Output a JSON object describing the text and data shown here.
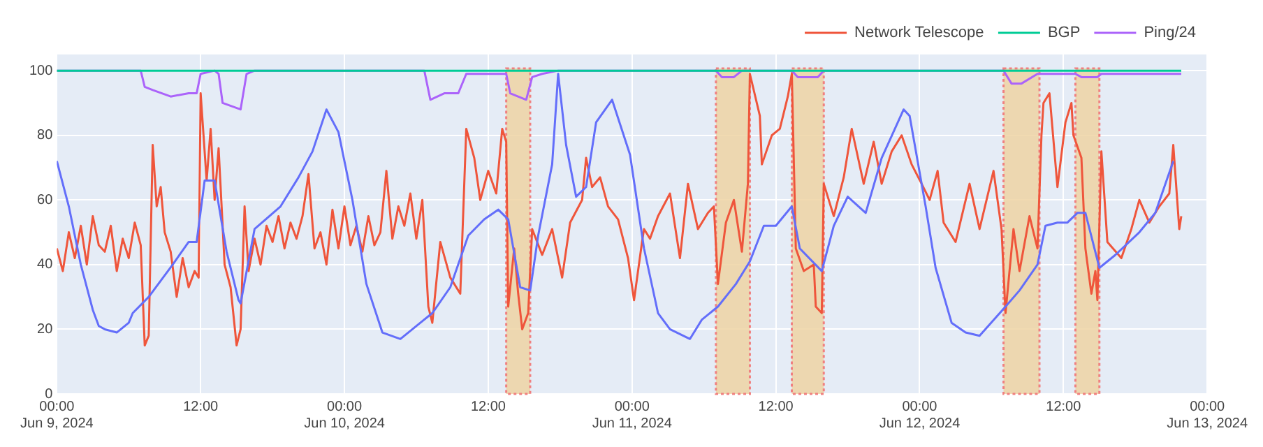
{
  "chart_data": {
    "type": "line",
    "xlim": [
      "2024-06-09T00:00",
      "2024-06-13T00:00"
    ],
    "xticks": [
      {
        "value": "2024-06-09T00:00",
        "label": "00:00\nJun 9, 2024"
      },
      {
        "value": "2024-06-09T12:00",
        "label": "12:00"
      },
      {
        "value": "2024-06-10T00:00",
        "label": "00:00\nJun 10, 2024"
      },
      {
        "value": "2024-06-10T12:00",
        "label": "12:00"
      },
      {
        "value": "2024-06-11T00:00",
        "label": "00:00\nJun 11, 2024"
      },
      {
        "value": "2024-06-11T12:00",
        "label": "12:00"
      },
      {
        "value": "2024-06-12T00:00",
        "label": "00:00\nJun 12, 2024"
      },
      {
        "value": "2024-06-12T12:00",
        "label": "12:00"
      },
      {
        "value": "2024-06-13T00:00",
        "label": "00:00\nJun 13, 2024"
      }
    ],
    "ylim": [
      0,
      105
    ],
    "yticks": [
      0,
      20,
      40,
      60,
      80,
      100
    ],
    "grid": true,
    "legend": "top right",
    "marker": "none",
    "line_style": "solid",
    "bands": [
      {
        "axis": "x",
        "from": "2024-06-10T13:30",
        "to": "2024-06-10T15:30",
        "color": "#efd3a3"
      },
      {
        "axis": "x",
        "from": "2024-06-11T07:00",
        "to": "2024-06-11T09:50",
        "color": "#efd3a3"
      },
      {
        "axis": "x",
        "from": "2024-06-11T13:20",
        "to": "2024-06-11T16:00",
        "color": "#efd3a3"
      },
      {
        "axis": "x",
        "from": "2024-06-12T07:00",
        "to": "2024-06-12T10:00",
        "color": "#efd3a3"
      },
      {
        "axis": "x",
        "from": "2024-06-12T13:00",
        "to": "2024-06-12T15:00",
        "color": "#efd3a3"
      }
    ],
    "series": [
      {
        "color": "#636efa",
        "x": [
          "2024-06-09T00:00",
          "2024-06-09T01:00",
          "2024-06-09T02:00",
          "2024-06-09T03:00",
          "2024-06-09T03:30",
          "2024-06-09T04:00",
          "2024-06-09T05:00",
          "2024-06-09T06:00",
          "2024-06-09T06:20",
          "2024-06-09T07:40",
          "2024-06-09T09:40",
          "2024-06-09T11:00",
          "2024-06-09T11:40",
          "2024-06-09T12:20",
          "2024-06-09T13:10",
          "2024-06-09T14:10",
          "2024-06-09T15:10",
          "2024-06-09T15:20",
          "2024-06-09T16:30",
          "2024-06-09T18:40",
          "2024-06-09T20:10",
          "2024-06-09T21:20",
          "2024-06-09T22:30",
          "2024-06-09T23:30",
          "2024-06-10T00:40",
          "2024-06-10T01:50",
          "2024-06-10T03:10",
          "2024-06-10T04:40",
          "2024-06-10T06:20",
          "2024-06-10T07:20",
          "2024-06-10T08:50",
          "2024-06-10T10:20",
          "2024-06-10T11:40",
          "2024-06-10T12:50",
          "2024-06-10T13:40",
          "2024-06-10T14:40",
          "2024-06-10T15:30",
          "2024-06-10T16:10",
          "2024-06-10T17:20",
          "2024-06-10T17:50",
          "2024-06-10T18:30",
          "2024-06-10T19:20",
          "2024-06-10T20:10",
          "2024-06-10T21:00",
          "2024-06-10T22:20",
          "2024-06-10T23:50",
          "2024-06-11T01:00",
          "2024-06-11T02:10",
          "2024-06-11T03:10",
          "2024-06-11T04:50",
          "2024-06-11T05:50",
          "2024-06-11T07:10",
          "2024-06-11T08:40",
          "2024-06-11T09:50",
          "2024-06-11T11:00",
          "2024-06-11T12:00",
          "2024-06-11T13:20",
          "2024-06-11T14:00",
          "2024-06-11T15:50",
          "2024-06-11T16:50",
          "2024-06-11T18:00",
          "2024-06-11T19:30",
          "2024-06-11T20:50",
          "2024-06-11T22:40",
          "2024-06-11T23:10",
          "2024-06-12T00:30",
          "2024-06-12T01:20",
          "2024-06-12T02:40",
          "2024-06-12T03:50",
          "2024-06-12T05:00",
          "2024-06-12T07:10",
          "2024-06-12T08:20",
          "2024-06-12T09:50",
          "2024-06-12T10:30",
          "2024-06-12T11:30",
          "2024-06-12T12:20",
          "2024-06-12T13:10",
          "2024-06-12T13:50",
          "2024-06-12T15:00",
          "2024-06-12T16:20",
          "2024-06-12T18:20",
          "2024-06-12T19:40",
          "2024-06-12T21:10"
        ],
        "values": [
          72,
          58,
          40,
          26,
          21,
          20,
          19,
          22,
          25,
          30,
          40,
          47,
          47,
          66,
          66,
          44,
          29,
          28,
          51,
          58,
          67,
          75,
          88,
          81,
          60,
          34,
          19,
          17,
          22,
          25,
          33,
          49,
          54,
          57,
          54,
          33,
          32,
          49,
          71,
          99,
          77,
          61,
          64,
          84,
          91,
          74,
          45,
          25,
          20,
          17,
          23,
          27,
          34,
          41,
          52,
          52,
          58,
          45,
          38,
          52,
          61,
          56,
          73,
          88,
          86,
          58,
          39,
          22,
          19,
          18,
          27,
          32,
          40,
          52,
          53,
          53,
          56,
          56,
          39,
          43,
          50,
          56,
          72
        ]
      },
      {
        "name": "Network Telescope",
        "color": "#ef553b",
        "x": [
          "2024-06-09T00:00",
          "2024-06-09T00:30",
          "2024-06-09T01:00",
          "2024-06-09T01:30",
          "2024-06-09T02:00",
          "2024-06-09T02:30",
          "2024-06-09T03:00",
          "2024-06-09T03:30",
          "2024-06-09T04:00",
          "2024-06-09T04:30",
          "2024-06-09T05:00",
          "2024-06-09T05:30",
          "2024-06-09T06:00",
          "2024-06-09T06:30",
          "2024-06-09T07:00",
          "2024-06-09T07:20",
          "2024-06-09T07:40",
          "2024-06-09T08:00",
          "2024-06-09T08:20",
          "2024-06-09T08:40",
          "2024-06-09T09:00",
          "2024-06-09T09:30",
          "2024-06-09T10:00",
          "2024-06-09T10:30",
          "2024-06-09T11:00",
          "2024-06-09T11:30",
          "2024-06-09T11:50",
          "2024-06-09T12:00",
          "2024-06-09T12:30",
          "2024-06-09T12:50",
          "2024-06-09T13:10",
          "2024-06-09T13:30",
          "2024-06-09T14:00",
          "2024-06-09T14:30",
          "2024-06-09T15:00",
          "2024-06-09T15:20",
          "2024-06-09T15:40",
          "2024-06-09T16:00",
          "2024-06-09T16:30",
          "2024-06-09T17:00",
          "2024-06-09T17:30",
          "2024-06-09T18:00",
          "2024-06-09T18:30",
          "2024-06-09T19:00",
          "2024-06-09T19:30",
          "2024-06-09T20:00",
          "2024-06-09T20:30",
          "2024-06-09T21:00",
          "2024-06-09T21:30",
          "2024-06-09T22:00",
          "2024-06-09T22:30",
          "2024-06-09T23:00",
          "2024-06-09T23:30",
          "2024-06-10T00:00",
          "2024-06-10T00:30",
          "2024-06-10T01:00",
          "2024-06-10T01:30",
          "2024-06-10T02:00",
          "2024-06-10T02:30",
          "2024-06-10T03:00",
          "2024-06-10T03:30",
          "2024-06-10T04:00",
          "2024-06-10T04:30",
          "2024-06-10T05:00",
          "2024-06-10T05:30",
          "2024-06-10T06:00",
          "2024-06-10T06:30",
          "2024-06-10T07:00",
          "2024-06-10T07:20",
          "2024-06-10T08:00",
          "2024-06-10T08:50",
          "2024-06-10T09:40",
          "2024-06-10T10:10",
          "2024-06-10T10:50",
          "2024-06-10T11:20",
          "2024-06-10T12:00",
          "2024-06-10T12:40",
          "2024-06-10T13:10",
          "2024-06-10T13:30",
          "2024-06-10T13:40",
          "2024-06-10T14:10",
          "2024-06-10T14:30",
          "2024-06-10T14:50",
          "2024-06-10T15:20",
          "2024-06-10T15:40",
          "2024-06-10T16:30",
          "2024-06-10T17:20",
          "2024-06-10T18:10",
          "2024-06-10T18:50",
          "2024-06-10T19:50",
          "2024-06-10T20:10",
          "2024-06-10T20:40",
          "2024-06-10T21:20",
          "2024-06-10T22:00",
          "2024-06-10T22:50",
          "2024-06-10T23:40",
          "2024-06-11T00:10",
          "2024-06-11T00:50",
          "2024-06-11T01:00",
          "2024-06-11T01:30",
          "2024-06-11T02:10",
          "2024-06-11T03:10",
          "2024-06-11T04:00",
          "2024-06-11T04:40",
          "2024-06-11T05:30",
          "2024-06-11T06:20",
          "2024-06-11T06:50",
          "2024-06-11T07:10",
          "2024-06-11T07:50",
          "2024-06-11T08:30",
          "2024-06-11T09:10",
          "2024-06-11T09:40",
          "2024-06-11T09:50",
          "2024-06-11T10:40",
          "2024-06-11T10:50",
          "2024-06-11T11:40",
          "2024-06-11T12:20",
          "2024-06-11T13:00",
          "2024-06-11T13:20",
          "2024-06-11T13:40",
          "2024-06-11T14:20",
          "2024-06-11T15:10",
          "2024-06-11T15:20",
          "2024-06-11T15:50",
          "2024-06-11T16:00",
          "2024-06-11T16:50",
          "2024-06-11T17:40",
          "2024-06-11T18:20",
          "2024-06-11T19:20",
          "2024-06-11T20:10",
          "2024-06-11T20:50",
          "2024-06-11T21:40",
          "2024-06-11T22:30",
          "2024-06-11T23:20",
          "2024-06-12T00:10",
          "2024-06-12T00:50",
          "2024-06-12T01:30",
          "2024-06-12T02:00",
          "2024-06-12T03:00",
          "2024-06-12T04:10",
          "2024-06-12T05:00",
          "2024-06-12T06:10",
          "2024-06-12T06:50",
          "2024-06-12T07:10",
          "2024-06-12T07:50",
          "2024-06-12T08:20",
          "2024-06-12T09:10",
          "2024-06-12T09:50",
          "2024-06-12T10:10",
          "2024-06-12T10:20",
          "2024-06-12T10:50",
          "2024-06-12T11:30",
          "2024-06-12T12:10",
          "2024-06-12T12:40",
          "2024-06-12T12:50",
          "2024-06-12T13:30",
          "2024-06-12T13:50",
          "2024-06-12T14:20",
          "2024-06-12T14:40",
          "2024-06-12T14:50",
          "2024-06-12T15:10",
          "2024-06-12T15:40",
          "2024-06-12T16:50",
          "2024-06-12T17:40",
          "2024-06-12T18:20",
          "2024-06-12T19:10",
          "2024-06-12T20:00",
          "2024-06-12T20:50",
          "2024-06-12T21:10",
          "2024-06-12T21:40",
          "2024-06-12T21:50"
        ],
        "values": [
          45,
          38,
          50,
          42,
          52,
          40,
          55,
          46,
          44,
          52,
          38,
          48,
          42,
          53,
          46,
          15,
          18,
          77,
          58,
          64,
          50,
          44,
          30,
          42,
          33,
          38,
          36,
          93,
          66,
          82,
          60,
          76,
          40,
          33,
          15,
          20,
          58,
          38,
          48,
          40,
          52,
          47,
          55,
          45,
          53,
          48,
          55,
          68,
          45,
          50,
          40,
          57,
          45,
          58,
          46,
          52,
          44,
          55,
          46,
          50,
          69,
          48,
          58,
          52,
          62,
          48,
          60,
          27,
          22,
          47,
          36,
          31,
          82,
          73,
          60,
          69,
          62,
          82,
          78,
          27,
          45,
          31,
          20,
          25,
          51,
          43,
          51,
          36,
          53,
          60,
          73,
          64,
          67,
          58,
          54,
          42,
          29,
          47,
          51,
          48,
          55,
          62,
          42,
          65,
          51,
          56,
          58,
          34,
          53,
          60,
          44,
          65,
          99,
          86,
          71,
          80,
          82,
          92,
          99,
          45,
          38,
          40,
          27,
          25,
          65,
          55,
          67,
          82,
          65,
          78,
          65,
          75,
          80,
          71,
          65,
          60,
          69,
          53,
          47,
          65,
          51,
          69,
          51,
          25,
          51,
          38,
          55,
          45,
          80,
          90,
          93,
          64,
          84,
          90,
          80,
          73,
          45,
          31,
          38,
          29,
          75,
          47,
          42,
          51,
          60,
          53,
          58,
          62,
          77,
          51,
          55
        ]
      },
      {
        "name": "BGP",
        "color": "#00cc96",
        "x": [
          "2024-06-09T00:00",
          "2024-06-12T21:50"
        ],
        "values": [
          100,
          100
        ]
      },
      {
        "name": "Ping/24",
        "color": "#ab63fa",
        "x": [
          "2024-06-09T00:00",
          "2024-06-09T07:00",
          "2024-06-09T07:20",
          "2024-06-09T08:00",
          "2024-06-09T09:30",
          "2024-06-09T11:00",
          "2024-06-09T11:40",
          "2024-06-09T12:00",
          "2024-06-09T13:10",
          "2024-06-09T13:30",
          "2024-06-09T13:50",
          "2024-06-09T15:20",
          "2024-06-09T15:50",
          "2024-06-09T16:30",
          "2024-06-10T06:40",
          "2024-06-10T07:10",
          "2024-06-10T08:20",
          "2024-06-10T09:30",
          "2024-06-10T10:10",
          "2024-06-10T13:30",
          "2024-06-10T13:50",
          "2024-06-10T15:10",
          "2024-06-10T15:40",
          "2024-06-10T16:30",
          "2024-06-10T17:50",
          "2024-06-11T07:00",
          "2024-06-11T07:30",
          "2024-06-11T08:30",
          "2024-06-11T09:10",
          "2024-06-11T13:20",
          "2024-06-11T13:50",
          "2024-06-11T15:30",
          "2024-06-11T16:00",
          "2024-06-12T07:00",
          "2024-06-12T07:40",
          "2024-06-12T08:30",
          "2024-06-12T09:50",
          "2024-06-12T13:00",
          "2024-06-12T13:30",
          "2024-06-12T14:50",
          "2024-06-12T15:10",
          "2024-06-12T21:50"
        ],
        "values": [
          100,
          100,
          95,
          94,
          92,
          93,
          93,
          99,
          100,
          99,
          90,
          88,
          99,
          100,
          100,
          91,
          93,
          93,
          99,
          99,
          93,
          91,
          98,
          99,
          100,
          100,
          98,
          98,
          100,
          100,
          98,
          98,
          100,
          100,
          96,
          96,
          99,
          99,
          98,
          98,
          99,
          99
        ]
      }
    ]
  }
}
